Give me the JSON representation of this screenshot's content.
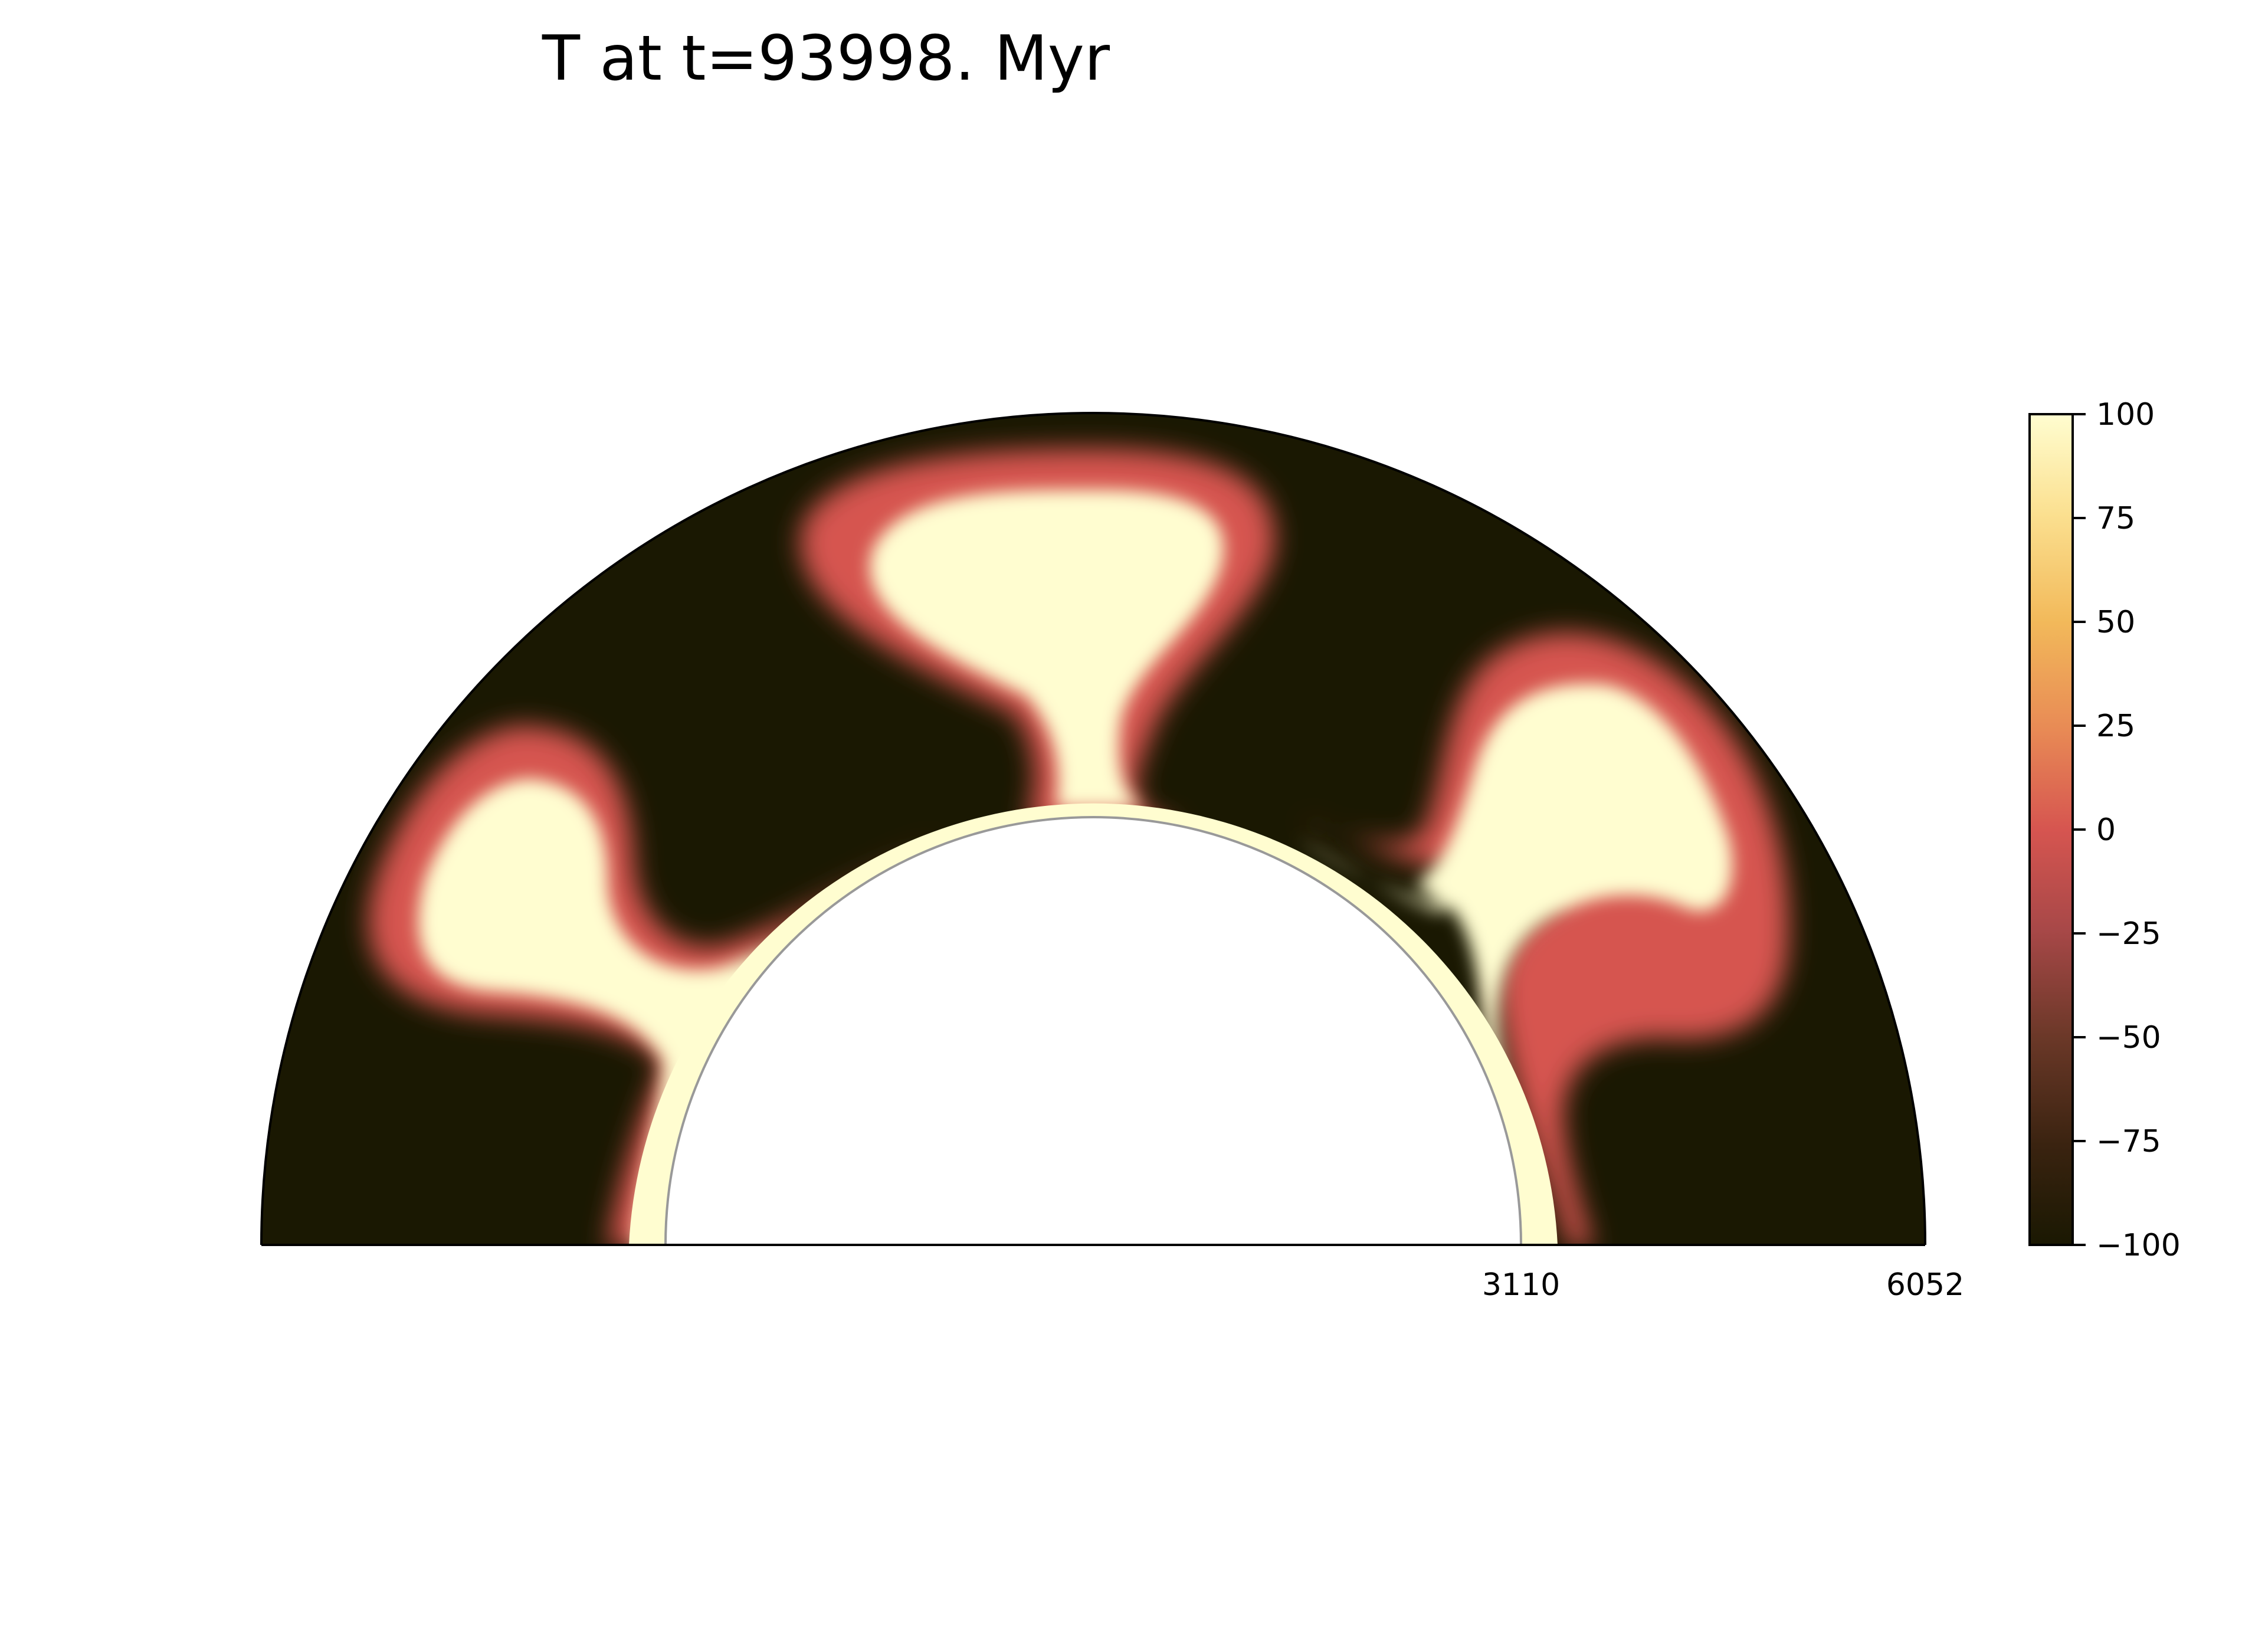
{
  "chart_data": {
    "type": "heatmap",
    "title": "T at t=93998. Myr",
    "projection": "polar-half-annulus",
    "radial_ticks": [
      "3110",
      "6052"
    ],
    "r_inner": 3110,
    "r_outer": 6052,
    "theta_range_deg": [
      0,
      180
    ],
    "colorbar": {
      "ticks": [
        "100",
        "75",
        "50",
        "25",
        "0",
        "−25",
        "−50",
        "−75",
        "−100"
      ],
      "vmin": -100,
      "vmax": 100,
      "colors": [
        "#1a1802",
        "#3a2310",
        "#6b3828",
        "#a84848",
        "#d65550",
        "#e88a55",
        "#f2b95a",
        "#fbe090",
        "#fffdd0"
      ]
    },
    "background_color": "#1a1802",
    "hot_color": "#fffdd0",
    "plumes": [
      {
        "theta_deg": 167,
        "description_level": 100
      },
      {
        "theta_deg": 90,
        "description_level": 100
      },
      {
        "theta_deg": 22,
        "description_level": 100
      }
    ]
  }
}
